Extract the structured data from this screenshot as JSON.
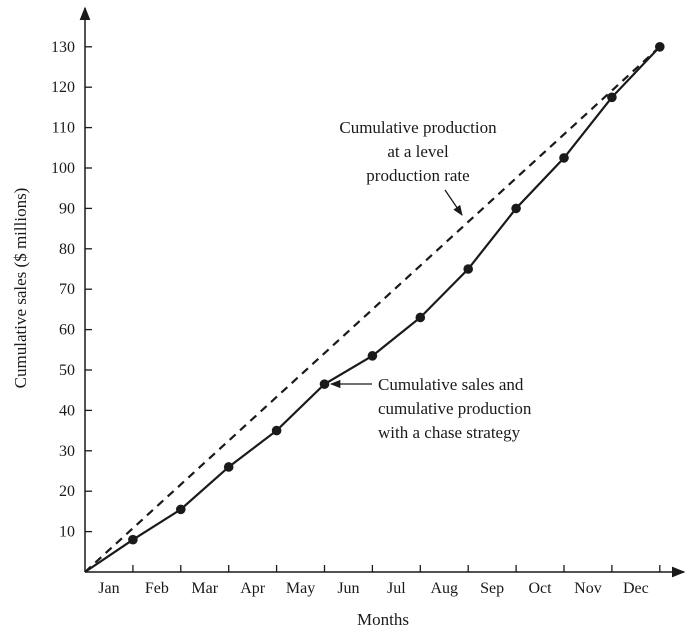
{
  "chart_data": {
    "type": "line",
    "title": "",
    "xlabel": "Months",
    "ylabel": "Cumulative sales ($ millions)",
    "categories": [
      "Jan",
      "Feb",
      "Mar",
      "Apr",
      "May",
      "Jun",
      "Jul",
      "Aug",
      "Sep",
      "Oct",
      "Nov",
      "Dec"
    ],
    "yticks": [
      10,
      20,
      30,
      40,
      50,
      60,
      70,
      80,
      90,
      100,
      110,
      120,
      130
    ],
    "ylim": [
      0,
      130
    ],
    "grid": false,
    "series": [
      {
        "style": "solid-with-markers",
        "x": [
          0,
          1,
          2,
          3,
          4,
          5,
          6,
          7,
          8,
          9,
          10,
          11,
          12
        ],
        "values": [
          0,
          8,
          15.5,
          26,
          35,
          46.5,
          53.5,
          63,
          75,
          90,
          102.5,
          117.5,
          130
        ]
      },
      {
        "style": "dashed",
        "x": [
          0,
          12
        ],
        "values": [
          0,
          130
        ]
      }
    ],
    "annotations": [
      {
        "lines": [
          "Cumulative production",
          "at a level",
          "production rate"
        ]
      },
      {
        "lines": [
          "Cumulative sales and",
          "cumulative production",
          "with a chase strategy"
        ]
      }
    ]
  }
}
